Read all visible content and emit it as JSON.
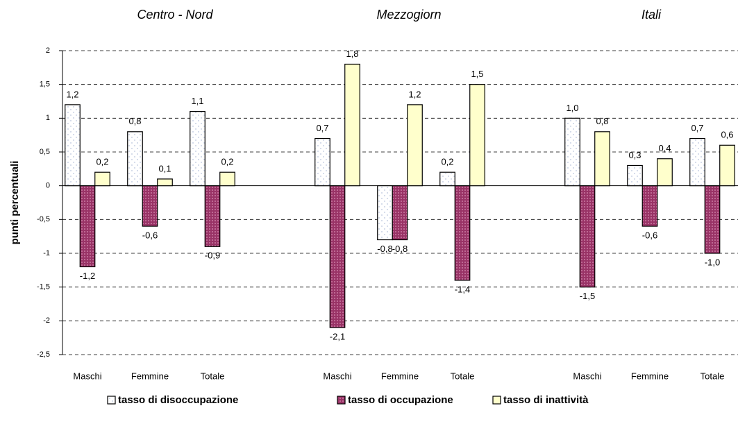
{
  "chart_data": {
    "type": "bar",
    "y_label": "punti percentuali",
    "annotations": [
      "Centro - Nord",
      "Mezzogiorn",
      "Itali"
    ],
    "categories": [
      "Maschi",
      "Femmine",
      "Totale",
      null,
      "Maschi",
      "Femmine",
      "Totale",
      null,
      "Maschi",
      "Femmine",
      "Totale"
    ],
    "series": [
      {
        "name": "tasso di disoccupazione",
        "color": "#ffffff",
        "values": [
          1.2,
          0.8,
          1.1,
          null,
          0.7,
          -0.8,
          0.2,
          null,
          1.0,
          0.3,
          0.7
        ],
        "value_labels": [
          "1,2",
          "0,8",
          "1,1",
          null,
          "0,7",
          "-0,8",
          "0,2",
          null,
          "1,0",
          "0,3",
          "0,7"
        ]
      },
      {
        "name": "tasso di occupazione",
        "color": "#993366",
        "values": [
          -1.2,
          -0.6,
          -0.9,
          null,
          -2.1,
          -0.8,
          -1.4,
          null,
          -1.5,
          -0.6,
          -1.0
        ],
        "value_labels": [
          "-1,2",
          "-0,6",
          "-0,9",
          null,
          "-2,1",
          "-0,8",
          "-1,4",
          null,
          "-1,5",
          "-0,6",
          "-1,0"
        ]
      },
      {
        "name": "tasso di inattività",
        "color": "#ffffcc",
        "values": [
          0.2,
          0.1,
          0.2,
          null,
          1.8,
          1.2,
          1.5,
          null,
          0.8,
          0.4,
          0.6
        ],
        "value_labels": [
          "0,2",
          "0,1",
          "0,2",
          null,
          "1,8",
          "1,2",
          "1,5",
          null,
          "0,8",
          "0,4",
          "0,6"
        ]
      }
    ],
    "ylim": [
      -2.5,
      2
    ],
    "yticks": [
      2,
      {
        "value": 1.5,
        "label": "1,5"
      },
      1,
      {
        "value": 0.5,
        "label": "0,5"
      },
      0,
      {
        "value": -0.5,
        "label": "-0,5"
      },
      -1,
      {
        "value": -1.5,
        "label": "-1,5"
      },
      -2,
      {
        "value": -2.5,
        "label": "-2,5"
      }
    ],
    "grid": true,
    "legend": "bottom"
  }
}
